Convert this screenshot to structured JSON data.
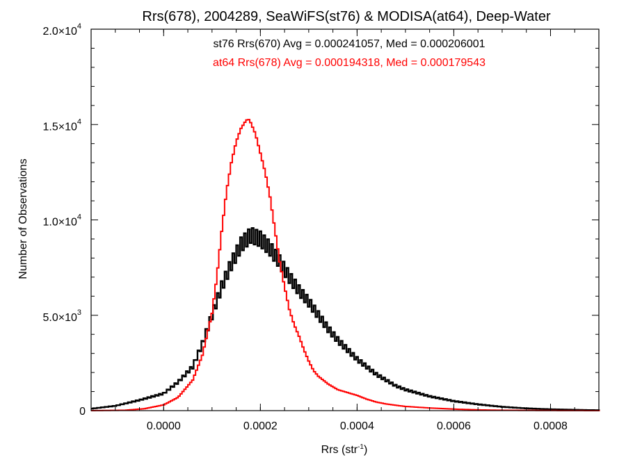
{
  "chart_data": {
    "type": "line",
    "title": "Rrs(678), 2004289, SeaWiFS(st76) & MODISA(at64), Deep-Water",
    "xlabel": "Rrs (str",
    "xlabel_sup": "-1",
    "xlabel_close": ")",
    "ylabel": "Number of Observations",
    "xlim": [
      -0.00015,
      0.0009
    ],
    "ylim": [
      0,
      20000
    ],
    "x_ticks": [
      {
        "value": 0.0,
        "label": "0.0000"
      },
      {
        "value": 0.0002,
        "label": "0.0002"
      },
      {
        "value": 0.0004,
        "label": "0.0004"
      },
      {
        "value": 0.0006,
        "label": "0.0006"
      },
      {
        "value": 0.0008,
        "label": "0.0008"
      }
    ],
    "y_ticks": [
      {
        "value": 0,
        "mant": "0",
        "exp": ""
      },
      {
        "value": 5000,
        "mant": "5.0×10",
        "exp": "3"
      },
      {
        "value": 10000,
        "mant": "1.0×10",
        "exp": "4"
      },
      {
        "value": 15000,
        "mant": "1.5×10",
        "exp": "4"
      },
      {
        "value": 20000,
        "mant": "2.0×10",
        "exp": "4"
      }
    ],
    "annotations": [
      "st76 Rrs(670) Avg = 0.000241057, Med = 0.000206001",
      "at64 Rrs(678) Avg = 0.000194318, Med = 0.000179543"
    ],
    "series": [
      {
        "name": "st76 Rrs(670)",
        "color": "#000000",
        "x": [
          -0.00015,
          -0.0001,
          -5e-05,
          0.0,
          3e-05,
          6e-05,
          8e-05,
          0.0001,
          0.00012,
          0.00014,
          0.00016,
          0.00018,
          0.0002,
          0.00022,
          0.00024,
          0.00026,
          0.00028,
          0.0003,
          0.00032,
          0.00034,
          0.00036,
          0.00038,
          0.0004,
          0.00042,
          0.00044,
          0.00046,
          0.00048,
          0.0005,
          0.00055,
          0.0006,
          0.00065,
          0.0007,
          0.00075,
          0.0008,
          0.0009
        ],
        "y": [
          100,
          250,
          550,
          900,
          1500,
          2300,
          3500,
          5000,
          6500,
          7700,
          8700,
          9200,
          9000,
          8500,
          7800,
          7000,
          6300,
          5700,
          5000,
          4300,
          3700,
          3200,
          2700,
          2300,
          1900,
          1600,
          1300,
          1100,
          750,
          500,
          330,
          200,
          120,
          70,
          20
        ]
      },
      {
        "name": "at64 Rrs(678)",
        "color": "#ff0000",
        "x": [
          -0.00015,
          -8e-05,
          -4e-05,
          0.0,
          3e-05,
          6e-05,
          8e-05,
          0.0001,
          0.00011,
          0.00012,
          0.00013,
          0.00014,
          0.00015,
          0.00016,
          0.00017,
          0.000175,
          0.00018,
          0.00019,
          0.0002,
          0.00021,
          0.00022,
          0.00023,
          0.00024,
          0.00025,
          0.00026,
          0.00027,
          0.00028,
          0.00029,
          0.0003,
          0.00031,
          0.00032,
          0.00034,
          0.00036,
          0.00038,
          0.0004,
          0.00042,
          0.00044,
          0.00046,
          0.00048,
          0.0005,
          0.00055,
          0.0006,
          0.00065,
          0.0007,
          0.0008,
          0.0009
        ],
        "y": [
          0,
          20,
          100,
          300,
          700,
          1600,
          2900,
          5100,
          7000,
          9400,
          11500,
          13000,
          14100,
          14800,
          15200,
          15300,
          15100,
          14500,
          13500,
          12500,
          11200,
          9500,
          7800,
          6500,
          5300,
          4500,
          3900,
          3200,
          2600,
          2100,
          1800,
          1400,
          1100,
          950,
          800,
          600,
          450,
          350,
          280,
          220,
          140,
          80,
          40,
          20,
          8,
          0
        ]
      }
    ]
  }
}
